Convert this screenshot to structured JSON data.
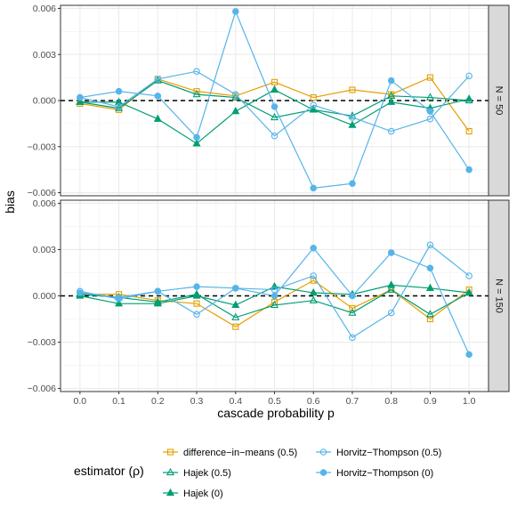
{
  "chart_data": {
    "type": "line",
    "xlabel": "cascade probability p",
    "ylabel": "bias",
    "x": [
      0.0,
      0.1,
      0.2,
      0.3,
      0.4,
      0.5,
      0.6,
      0.7,
      0.8,
      0.9,
      1.0
    ],
    "xticks": [
      "0.0",
      "0.1",
      "0.2",
      "0.3",
      "0.4",
      "0.5",
      "0.6",
      "0.7",
      "0.8",
      "0.9",
      "1.0"
    ],
    "ylim": [
      -0.0062,
      0.0062
    ],
    "yticks": [
      -0.006,
      -0.003,
      0.0,
      0.003,
      0.006
    ],
    "yticklabels": [
      "−0.006",
      "−0.003",
      "0.000",
      "0.003",
      "0.006"
    ],
    "reference_line": 0,
    "grid": true,
    "legend": {
      "title": "estimator (ρ)",
      "position": "bottom",
      "entries": [
        {
          "key": "dim05",
          "label": "difference−in−means (0.5)"
        },
        {
          "key": "hajek05",
          "label": "Hajek (0.5)"
        },
        {
          "key": "hajek0",
          "label": "Hajek (0)"
        },
        {
          "key": "ht05",
          "label": "Horvitz−Thompson (0.5)"
        },
        {
          "key": "ht0",
          "label": "Horvitz−Thompson (0)"
        }
      ]
    },
    "series_styles": {
      "dim05": {
        "color": "#E69F00",
        "marker": "square-open"
      },
      "hajek05": {
        "color": "#009E73",
        "marker": "triangle-open"
      },
      "hajek0": {
        "color": "#009E73",
        "marker": "triangle-filled"
      },
      "ht05": {
        "color": "#56B4E9",
        "marker": "circle-open"
      },
      "ht0": {
        "color": "#56B4E9",
        "marker": "circle-filled"
      }
    },
    "panels": [
      {
        "strip": "N = 50",
        "series": [
          {
            "key": "dim05",
            "values": [
              -0.0002,
              -0.0006,
              0.0014,
              0.0006,
              0.0003,
              0.0012,
              0.0002,
              0.0007,
              0.0004,
              0.0015,
              -0.002
            ]
          },
          {
            "key": "hajek05",
            "values": [
              -0.0001,
              -0.0005,
              0.0013,
              0.0004,
              0.0002,
              -0.0011,
              -0.0006,
              -0.001,
              0.0003,
              0.0002,
              0.0
            ]
          },
          {
            "key": "hajek0",
            "values": [
              -0.0001,
              -0.0001,
              -0.0012,
              -0.0028,
              -0.0007,
              0.0007,
              -0.0006,
              -0.0016,
              -0.0001,
              -0.0005,
              0.0001
            ]
          },
          {
            "key": "ht05",
            "values": [
              0.0002,
              -0.0004,
              0.0014,
              0.0019,
              0.0004,
              -0.0023,
              -0.0003,
              -0.0011,
              -0.002,
              -0.0012,
              0.0016
            ]
          },
          {
            "key": "ht0",
            "values": [
              0.0002,
              0.0006,
              0.0003,
              -0.0024,
              0.0058,
              -0.0004,
              -0.0057,
              -0.0054,
              0.0013,
              -0.0007,
              -0.0045
            ]
          }
        ]
      },
      {
        "strip": "N = 150",
        "series": [
          {
            "key": "dim05",
            "values": [
              0.0001,
              0.0001,
              -0.0003,
              -0.0005,
              -0.002,
              -0.0004,
              0.001,
              -0.0008,
              0.0004,
              -0.0015,
              0.0004
            ]
          },
          {
            "key": "hajek05",
            "values": [
              0.0001,
              -0.0001,
              -0.0004,
              0.0001,
              -0.0014,
              -0.0006,
              -0.0003,
              -0.0011,
              0.0004,
              -0.0012,
              0.0002
            ]
          },
          {
            "key": "hajek0",
            "values": [
              0.0,
              -0.0005,
              -0.0005,
              0.0,
              -0.0006,
              0.0006,
              0.0002,
              0.0001,
              0.0007,
              0.0005,
              0.0002
            ]
          },
          {
            "key": "ht05",
            "values": [
              0.0003,
              -0.0002,
              0.0003,
              -0.0012,
              0.0005,
              0.0004,
              0.0013,
              -0.0027,
              -0.0011,
              0.0033,
              0.0013
            ]
          },
          {
            "key": "ht0",
            "values": [
              0.0002,
              -0.0001,
              0.0003,
              0.0006,
              0.0005,
              0.0,
              0.0031,
              0.0,
              0.0028,
              0.0018,
              -0.0038
            ]
          }
        ]
      }
    ]
  }
}
